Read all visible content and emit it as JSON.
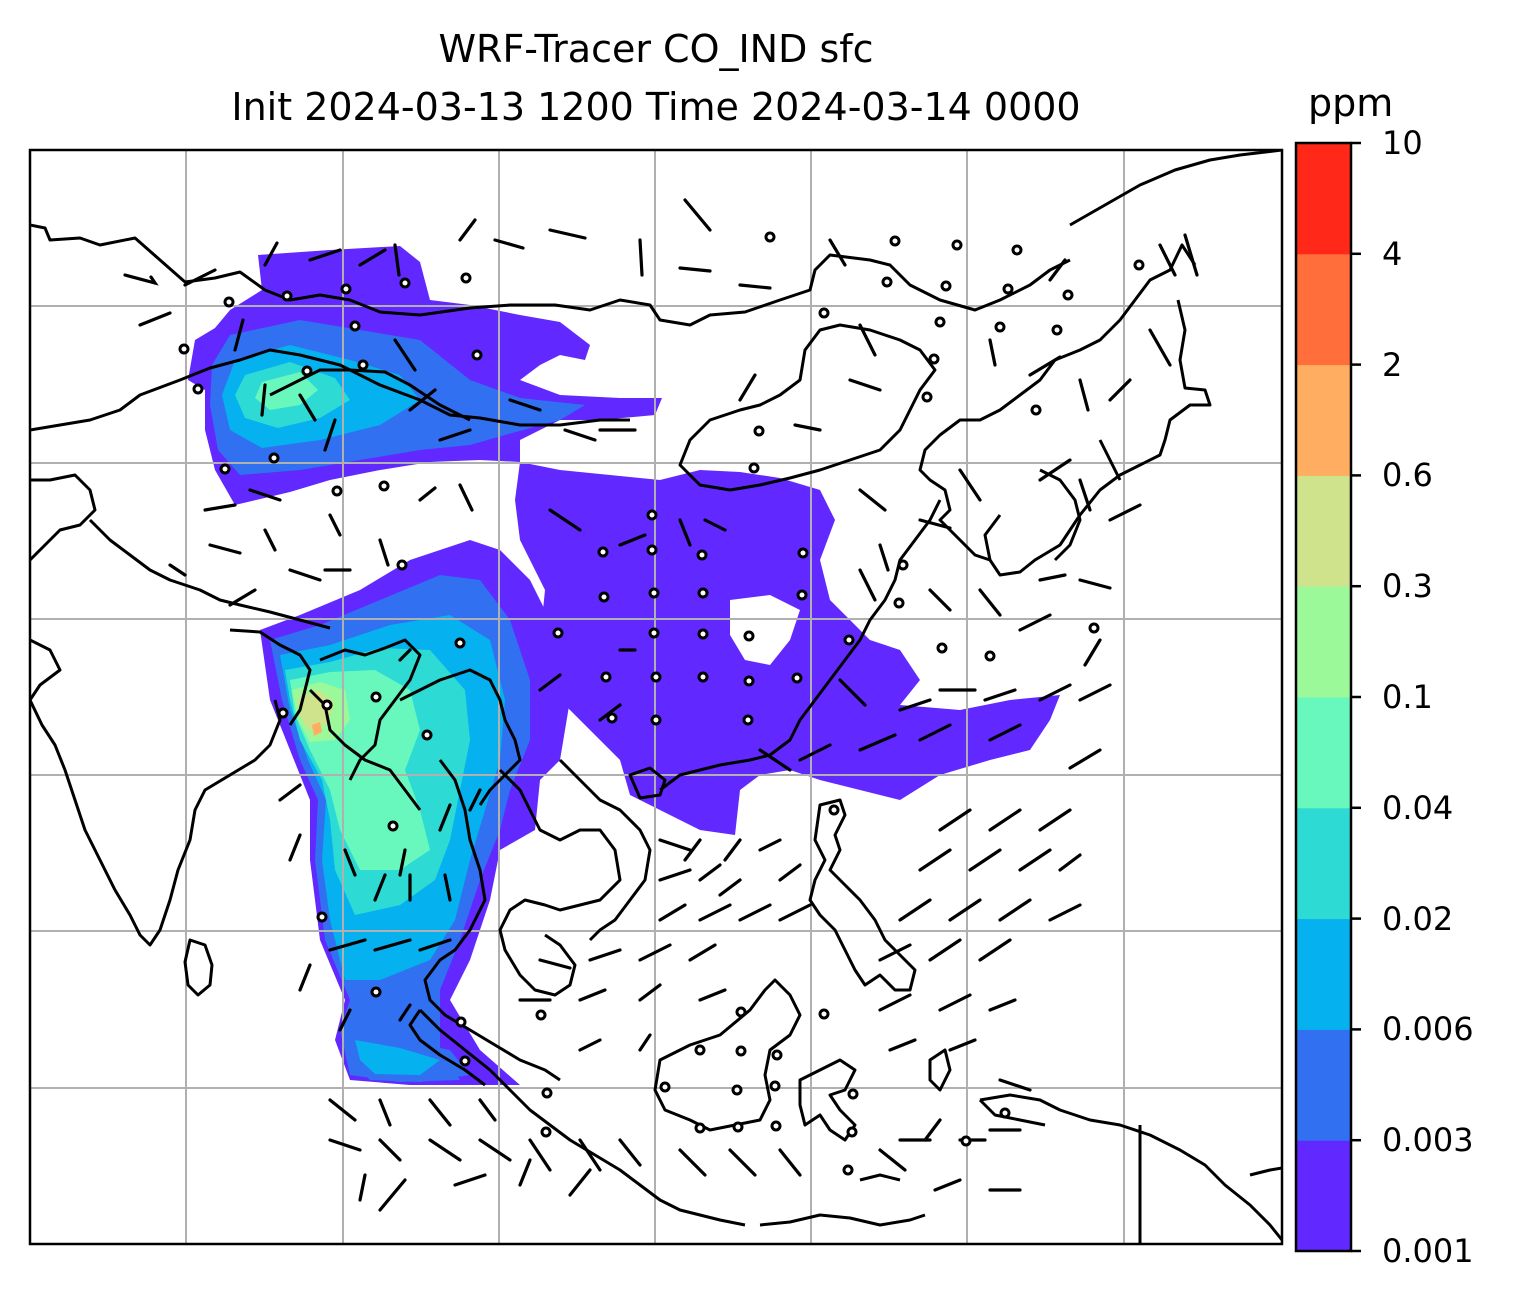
{
  "title": {
    "line1": "WRF-Tracer CO_IND sfc",
    "line2": "Init 2024-03-13 1200 Time 2024-03-14 0000"
  },
  "colorbar": {
    "unit": "ppm",
    "levels": [
      "0.001",
      "0.003",
      "0.006",
      "0.02",
      "0.04",
      "0.1",
      "0.3",
      "0.6",
      "2",
      "4",
      "10"
    ],
    "colors": [
      "#6128ff",
      "#3170f1",
      "#05b1ee",
      "#2ddad4",
      "#68f8bd",
      "#9cf99a",
      "#cfe28c",
      "#ffad61",
      "#ff6e3b",
      "#ff2819"
    ]
  },
  "map": {
    "gridlines": true,
    "coastline_color": "#000000",
    "gridline_color": "#b0b0b0",
    "wind_barbs": true,
    "calm_circles": true
  }
}
